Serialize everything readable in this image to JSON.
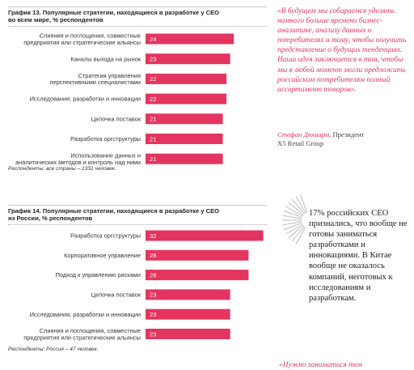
{
  "charts": {
    "c13": {
      "title": "График 13. Популярные стратегии, находящиеся в разработке у CEO",
      "subtitle": "во всем мире, % респондентов",
      "note": "Респонденты: все страны – 1331 человек."
    },
    "c14": {
      "title": "График 14. Популярные стратегии, находящиеся в разработке у CEO",
      "subtitle": "из России, % респондентов",
      "note": "Респонденты: Россия – 47 человек."
    }
  },
  "chart_data": [
    {
      "type": "bar",
      "orientation": "horizontal",
      "title": "График 13. Популярные стратегии, находящиеся в разработке у CEO во всем мире, % респондентов",
      "categories": [
        "Слияния и поглощения, совместные предприятия или стратегические альянсы",
        "Каналы выхода на рынок",
        "Стратегия управления перспективными специалистами",
        "Исследования, разработки и инновации",
        "Цепочка поставок",
        "Разработка оргструктуры",
        "Использование данных и аналитических методов и контроль над ними"
      ],
      "category_lines": [
        [
          "Слияния и поглощения, совместные",
          "предприятия или стратегические альянсы"
        ],
        [
          "Каналы выхода на рынок"
        ],
        [
          "Стратегия управления",
          "перспективными специалистами"
        ],
        [
          "Исследования, разработки и инновации"
        ],
        [
          "Цепочка поставок"
        ],
        [
          "Разработка оргструктуры"
        ],
        [
          "Использование данных и",
          "аналитических методов и контроль над ними"
        ]
      ],
      "values": [
        24,
        23,
        22,
        22,
        21,
        21,
        21
      ],
      "bar_color": "#e3355f"
    },
    {
      "type": "bar",
      "orientation": "horizontal",
      "title": "График 14. Популярные стратегии, находящиеся в разработке у CEO из России, % респондентов",
      "categories": [
        "Разработка оргструктуры",
        "Корпоративное управление",
        "Подход к управлению рисками",
        "Цепочка поставок",
        "Исследования, разработки и инновации",
        "Слияния и поглощения, совместные предприятия или стратегические альянсы"
      ],
      "category_lines": [
        [
          "Разработка оргструктуры"
        ],
        [
          "Корпоративное управление"
        ],
        [
          "Подход к управлению рисками"
        ],
        [
          "Цепочка поставок"
        ],
        [
          "Исследования, разработки и инновации"
        ],
        [
          "Слияния и поглощения, совместные",
          "предприятия или стратегические альянсы"
        ]
      ],
      "values": [
        32,
        28,
        28,
        23,
        23,
        23
      ],
      "bar_color": "#e3355f"
    }
  ],
  "quote": {
    "text": "«В будущем мы собираемся уделять намного больше времени бизнес-аналитике, анализу данных о потребителях и тому, чтобы получить представление о будущих тенденциях. Наша идея заключается в том, чтобы мы в любой момент могли предложить российским потребителям полный ассортимент товаров».",
    "author_name": "Стефан Дюшарм,",
    "author_role": "Президент",
    "company": "X5 Retail Group"
  },
  "callout": {
    "text": "17% российских CEO признались, что вообще не готовы заниматься разработками и инновациями. В Китае вообще не оказалось компаний, неготовых к исследованиям и разработкам."
  },
  "bottom_quote": "«Нужно заниматься тем"
}
